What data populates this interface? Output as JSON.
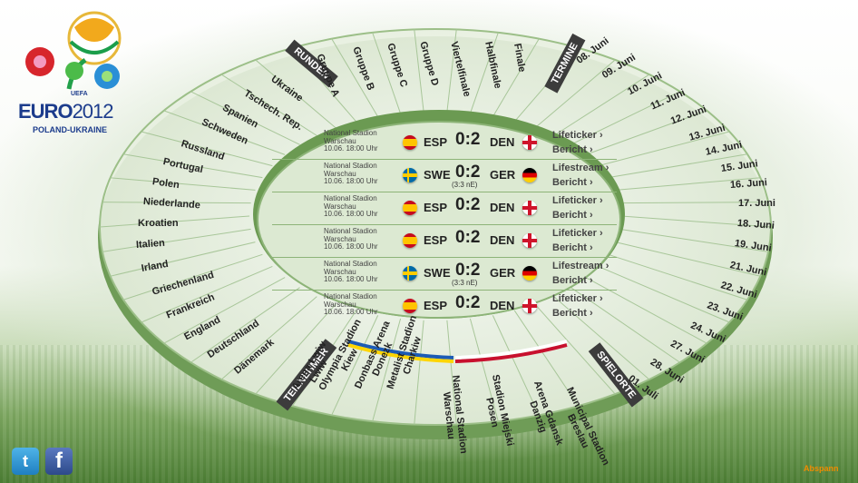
{
  "logo": {
    "uefa": "UEFA",
    "euro": "EURO",
    "year": "2012",
    "host": "POLAND-UKRAINE"
  },
  "headers": {
    "runden": "RUNDEN",
    "termine": "TERMINE",
    "spielorte": "SPIELORTE",
    "teilnehmer": "TEILNEHMER"
  },
  "rounds": [
    "Gruppe A",
    "Gruppe B",
    "Gruppe C",
    "Gruppe D",
    "Viertelfinale",
    "Halbfinale",
    "Finale"
  ],
  "dates": [
    "08. Juni",
    "09. Juni",
    "10. Juni",
    "11. Juni",
    "12. Juni",
    "13. Juni",
    "14. Juni",
    "15. Juni",
    "16. Juni",
    "17. Juni",
    "18. Juni",
    "19. Juni",
    "21. Juni",
    "22. Juni",
    "23. Juni",
    "24. Juni",
    "27. Juni",
    "28. Juni",
    "01. Juli"
  ],
  "venues": [
    "Arena Lwiw\nLwiw",
    "Olympia Stadion\nKiew",
    "Donbass Arena\nDonezk",
    "Metalist Stadion\nCharkiw",
    "National Stadion\nWarschau",
    "Stadion Miejski\nPosen",
    "Arena Gdansk\nDanzig",
    "Municipal Stadion\nBreslau"
  ],
  "teams": [
    "Ukraine",
    "Tschech. Rep.",
    "Spanien",
    "Schweden",
    "Russland",
    "Portugal",
    "Polen",
    "Niederlande",
    "Kroatien",
    "Italien",
    "Irland",
    "Griechenland",
    "Frankreich",
    "England",
    "Deutschland",
    "Dänemark"
  ],
  "matches": [
    {
      "venue": "National Stadion",
      "city": "Warschau",
      "time": "10.06. 18:00 Uhr",
      "home": "ESP",
      "away": "DEN",
      "home_flag": "esp",
      "away_flag": "den",
      "score": "0:2",
      "sub": "",
      "link1": "Lifeticker ›",
      "link2": "Bericht ›"
    },
    {
      "venue": "National Stadion",
      "city": "Warschau",
      "time": "10.06. 18:00 Uhr",
      "home": "SWE",
      "away": "GER",
      "home_flag": "swe",
      "away_flag": "ger",
      "score": "0:2",
      "sub": "(3:3 nE)",
      "link1": "Lifestream ›",
      "link2": "Bericht ›"
    },
    {
      "venue": "National Stadion",
      "city": "Warschau",
      "time": "10.06. 18:00 Uhr",
      "home": "ESP",
      "away": "DEN",
      "home_flag": "esp",
      "away_flag": "den",
      "score": "0:2",
      "sub": "",
      "link1": "Lifeticker ›",
      "link2": "Bericht ›"
    },
    {
      "venue": "National Stadion",
      "city": "Warschau",
      "time": "10.06. 18:00 Uhr",
      "home": "ESP",
      "away": "DEN",
      "home_flag": "esp",
      "away_flag": "den",
      "score": "0:2",
      "sub": "",
      "link1": "Lifeticker ›",
      "link2": "Bericht ›"
    },
    {
      "venue": "National Stadion",
      "city": "Warschau",
      "time": "10.06. 18:00 Uhr",
      "home": "SWE",
      "away": "GER",
      "home_flag": "swe",
      "away_flag": "ger",
      "score": "0:2",
      "sub": "(3:3 nE)",
      "link1": "Lifestream ›",
      "link2": "Bericht ›"
    },
    {
      "venue": "National Stadion",
      "city": "Warschau",
      "time": "10.06. 18:00 Uhr",
      "home": "ESP",
      "away": "DEN",
      "home_flag": "esp",
      "away_flag": "den",
      "score": "0:2",
      "sub": "",
      "link1": "Lifeticker ›",
      "link2": "Bericht ›"
    }
  ],
  "social": {
    "twitter_icon": "twitter-icon",
    "facebook_icon": "facebook-icon"
  },
  "footer": {
    "abspann": "Abspann"
  },
  "colors": {
    "accent": "#f08c00",
    "ring": "#7faa66",
    "text": "#222222"
  }
}
